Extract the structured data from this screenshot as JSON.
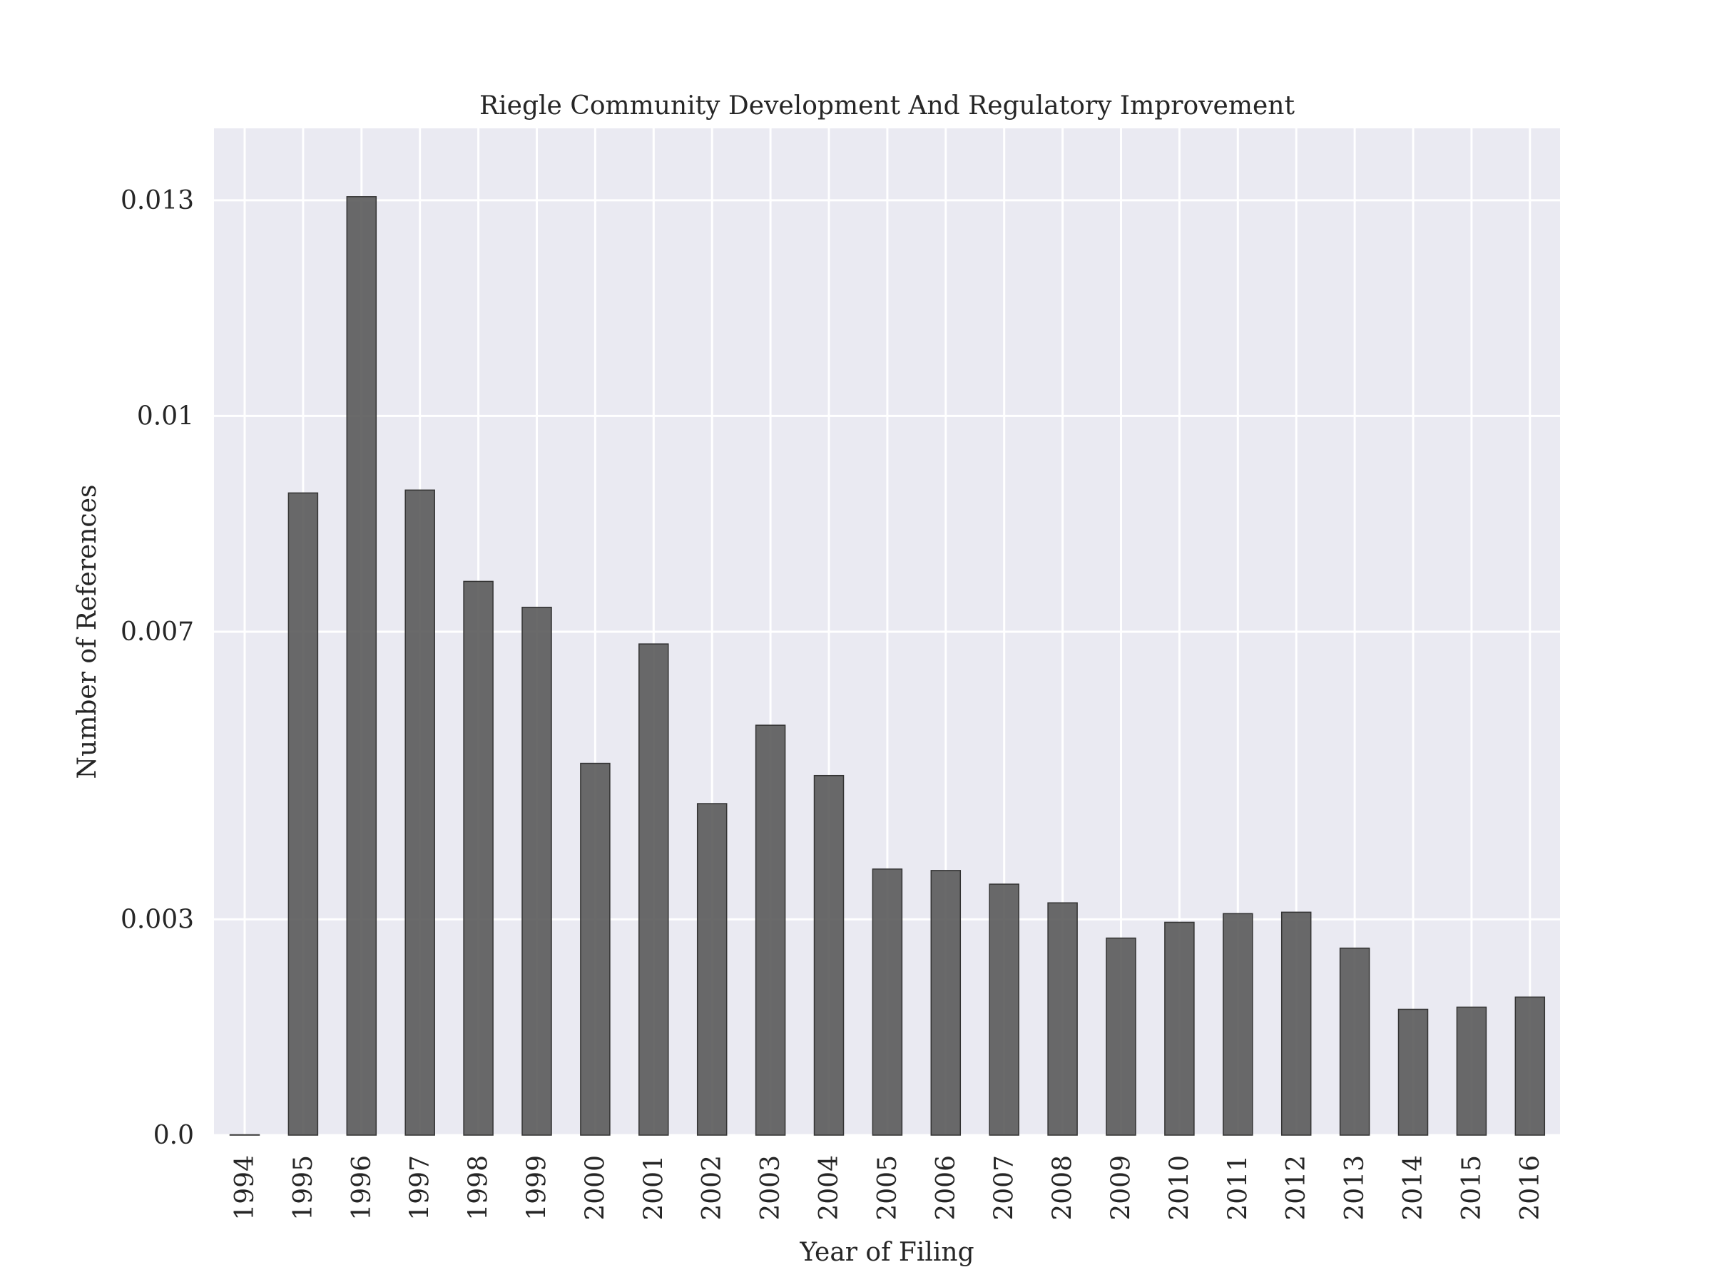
{
  "chart_data": {
    "type": "bar",
    "title": "Riegle Community Development And Regulatory Improvement",
    "xlabel": "Year of Filing",
    "ylabel": "Number of References",
    "categories": [
      "1994",
      "1995",
      "1996",
      "1997",
      "1998",
      "1999",
      "2000",
      "2001",
      "2002",
      "2003",
      "2004",
      "2005",
      "2006",
      "2007",
      "2008",
      "2009",
      "2010",
      "2011",
      "2012",
      "2013",
      "2014",
      "2015",
      "2016"
    ],
    "values": [
      0.0,
      0.00893,
      0.01305,
      0.00897,
      0.0077,
      0.00734,
      0.00517,
      0.00683,
      0.00461,
      0.0057,
      0.005,
      0.0037,
      0.00368,
      0.00349,
      0.00323,
      0.00274,
      0.00296,
      0.00308,
      0.0031,
      0.0026,
      0.00175,
      0.00178,
      0.00192
    ],
    "yticks": [
      0.0,
      0.003,
      0.007,
      0.01,
      0.013
    ],
    "ytick_labels": [
      "0.0",
      "0.003",
      "0.007",
      "0.01",
      "0.013"
    ],
    "ylim": [
      0,
      0.014
    ],
    "grid": true,
    "colors": {
      "bar": "#555555",
      "bar_edge": "#333333",
      "plot_background": "#eaeaf2",
      "grid": "#ffffff"
    }
  }
}
